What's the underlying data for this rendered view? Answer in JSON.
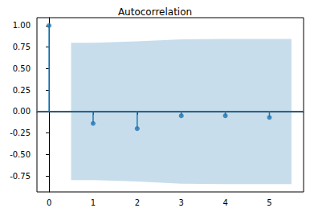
{
  "chart_data": {
    "type": "stem",
    "title": "Autocorrelation",
    "x": [
      0,
      1,
      2,
      3,
      4,
      5
    ],
    "values": [
      1.0,
      -0.14,
      -0.2,
      -0.05,
      -0.05,
      -0.07
    ],
    "color": "#1f77b4",
    "marker": "circle",
    "confidence_band": {
      "x": [
        0.5,
        1,
        2,
        3,
        4,
        5,
        5.5
      ],
      "upper": [
        0.8,
        0.8,
        0.815,
        0.84,
        0.845,
        0.845,
        0.845
      ],
      "lower": [
        -0.8,
        -0.8,
        -0.815,
        -0.84,
        -0.845,
        -0.845,
        -0.845
      ]
    },
    "reference_line": 0,
    "xlim": [
      -0.275,
      5.775
    ],
    "ylim": [
      -0.937,
      1.092
    ],
    "xticks": [
      0,
      1,
      2,
      3,
      4,
      5
    ],
    "yticks": [
      -0.75,
      {
        "value": -0.5,
        "label": "-0.50"
      },
      -0.25,
      {
        "value": 0,
        "label": "0.00"
      },
      0.25,
      {
        "value": 0.5,
        "label": "0.50"
      },
      0.75,
      {
        "value": 1,
        "label": "1.00"
      }
    ],
    "grid": false
  }
}
